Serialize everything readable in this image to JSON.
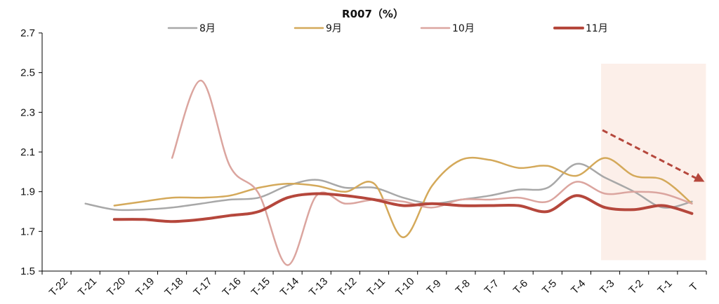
{
  "chart_data": {
    "type": "line",
    "title": "R007（%）",
    "xlabel": "",
    "ylabel": "",
    "categories": [
      "T-22",
      "T-21",
      "T-20",
      "T-19",
      "T-18",
      "T-17",
      "T-16",
      "T-15",
      "T-14",
      "T-13",
      "T-12",
      "T-11",
      "T-10",
      "T-9",
      "T-8",
      "T-7",
      "T-6",
      "T-5",
      "T-4",
      "T-3",
      "T-2",
      "T-1",
      "T"
    ],
    "ylim": [
      1.5,
      2.7
    ],
    "yticks": [
      "1.5",
      "1.7",
      "1.9",
      "2.1",
      "2.3",
      "2.5",
      "2.7"
    ],
    "legend_position": "top",
    "highlight_range": [
      "T-3",
      "T"
    ],
    "highlight_color": "#fcefe9",
    "trend_arrow_color": "#b5473c",
    "series": [
      {
        "name": "8月",
        "color": "#a8a8a8",
        "width": 2.5,
        "values": [
          null,
          1.84,
          1.81,
          1.81,
          1.82,
          1.84,
          1.86,
          1.87,
          1.93,
          1.96,
          1.92,
          1.92,
          1.87,
          1.84,
          1.86,
          1.88,
          1.91,
          1.92,
          2.04,
          1.97,
          1.9,
          1.82,
          1.85
        ]
      },
      {
        "name": "9月",
        "color": "#d4a95a",
        "width": 2.5,
        "values": [
          null,
          null,
          1.83,
          1.85,
          1.87,
          1.87,
          1.88,
          1.92,
          1.94,
          1.93,
          1.9,
          1.94,
          1.67,
          1.93,
          2.06,
          2.06,
          2.02,
          2.03,
          1.98,
          2.07,
          1.98,
          1.96,
          1.84
        ]
      },
      {
        "name": "10月",
        "color": "#dba59f",
        "width": 2.5,
        "values": [
          null,
          null,
          null,
          null,
          2.07,
          2.46,
          2.03,
          1.89,
          1.53,
          1.88,
          1.84,
          1.86,
          1.85,
          1.82,
          1.86,
          1.86,
          1.87,
          1.85,
          1.95,
          1.89,
          1.9,
          1.89,
          1.84
        ]
      },
      {
        "name": "11月",
        "color": "#b5473c",
        "width": 4,
        "values": [
          null,
          null,
          1.76,
          1.76,
          1.75,
          1.76,
          1.78,
          1.8,
          1.87,
          1.89,
          1.88,
          1.86,
          1.83,
          1.84,
          1.83,
          1.83,
          1.83,
          1.8,
          1.88,
          1.82,
          1.81,
          1.83,
          1.79
        ]
      }
    ]
  }
}
